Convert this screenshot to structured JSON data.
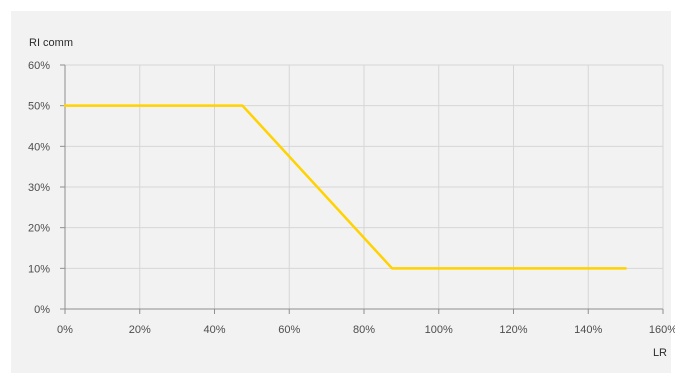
{
  "chart_data": {
    "type": "line",
    "title": "",
    "xlabel": "LR",
    "ylabel": "RI comm",
    "xlim": [
      0,
      160
    ],
    "ylim": [
      0,
      60
    ],
    "x_ticks": [
      "0%",
      "20%",
      "40%",
      "60%",
      "80%",
      "100%",
      "120%",
      "140%",
      "160%"
    ],
    "y_ticks": [
      "0%",
      "10%",
      "20%",
      "30%",
      "40%",
      "50%",
      "60%"
    ],
    "grid": true,
    "legend": "none",
    "series": [
      {
        "color": "#ffd200",
        "x": [
          0,
          47.5,
          87.5,
          150
        ],
        "y": [
          50,
          50,
          10,
          10
        ]
      }
    ]
  }
}
